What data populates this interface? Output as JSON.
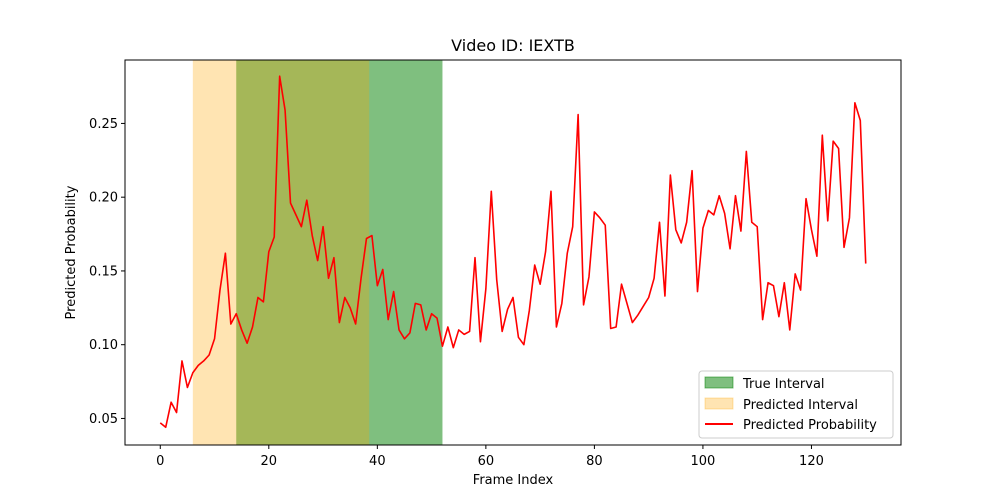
{
  "chart_data": {
    "type": "line",
    "title": "Video ID: IEXTB",
    "xlabel": "Frame Index",
    "ylabel": "Predicted Probability",
    "xlim": [
      -6.5,
      136.5
    ],
    "ylim": [
      0.032,
      0.293
    ],
    "xticks": [
      0,
      20,
      40,
      60,
      80,
      100,
      120
    ],
    "yticks": [
      0.05,
      0.1,
      0.15,
      0.2,
      0.25
    ],
    "ytick_labels": [
      "0.05",
      "0.10",
      "0.15",
      "0.20",
      "0.25"
    ],
    "grid": false,
    "legend_position": "bottom-right",
    "true_interval": {
      "name": "True Interval",
      "start": 14,
      "end": 52,
      "color": "#008000"
    },
    "predicted_interval": {
      "name": "Predicted Interval",
      "start": 6,
      "end": 38.5,
      "color": "#FFA500"
    },
    "series": [
      {
        "name": "Predicted Probability",
        "color": "#ff0000",
        "x": [
          0,
          1,
          2,
          3,
          4,
          5,
          6,
          7,
          8,
          9,
          10,
          11,
          12,
          13,
          14,
          15,
          16,
          17,
          18,
          19,
          20,
          21,
          22,
          23,
          24,
          25,
          26,
          27,
          28,
          29,
          30,
          31,
          32,
          33,
          34,
          35,
          36,
          37,
          38,
          39,
          40,
          41,
          42,
          43,
          44,
          45,
          46,
          47,
          48,
          49,
          50,
          51,
          52,
          53,
          54,
          55,
          56,
          57,
          58,
          59,
          60,
          61,
          62,
          63,
          64,
          65,
          66,
          67,
          68,
          69,
          70,
          71,
          72,
          73,
          74,
          75,
          76,
          77,
          78,
          79,
          80,
          81,
          82,
          83,
          84,
          85,
          86,
          87,
          88,
          89,
          90,
          91,
          92,
          93,
          94,
          95,
          96,
          97,
          98,
          99,
          100,
          101,
          102,
          103,
          104,
          105,
          106,
          107,
          108,
          109,
          110,
          111,
          112,
          113,
          114,
          115,
          116,
          117,
          118,
          119,
          120,
          121,
          122,
          123,
          124,
          125,
          126,
          127,
          128,
          129,
          130
        ],
        "values": [
          0.047,
          0.044,
          0.061,
          0.054,
          0.089,
          0.071,
          0.081,
          0.086,
          0.089,
          0.093,
          0.104,
          0.137,
          0.162,
          0.114,
          0.121,
          0.11,
          0.101,
          0.112,
          0.132,
          0.129,
          0.163,
          0.173,
          0.282,
          0.259,
          0.196,
          0.188,
          0.18,
          0.198,
          0.174,
          0.157,
          0.18,
          0.145,
          0.159,
          0.115,
          0.132,
          0.125,
          0.114,
          0.145,
          0.172,
          0.174,
          0.14,
          0.151,
          0.117,
          0.136,
          0.11,
          0.104,
          0.108,
          0.128,
          0.127,
          0.11,
          0.121,
          0.118,
          0.099,
          0.112,
          0.098,
          0.11,
          0.107,
          0.109,
          0.159,
          0.102,
          0.138,
          0.204,
          0.144,
          0.109,
          0.124,
          0.132,
          0.105,
          0.1,
          0.123,
          0.154,
          0.141,
          0.163,
          0.204,
          0.112,
          0.128,
          0.162,
          0.18,
          0.256,
          0.127,
          0.146,
          0.19,
          0.186,
          0.181,
          0.111,
          0.112,
          0.141,
          0.128,
          0.115,
          0.12,
          0.126,
          0.132,
          0.145,
          0.183,
          0.133,
          0.215,
          0.178,
          0.169,
          0.183,
          0.218,
          0.136,
          0.179,
          0.191,
          0.188,
          0.201,
          0.189,
          0.165,
          0.201,
          0.177,
          0.231,
          0.183,
          0.18,
          0.117,
          0.142,
          0.14,
          0.119,
          0.142,
          0.11,
          0.148,
          0.137,
          0.199,
          0.178,
          0.16,
          0.242,
          0.184,
          0.238,
          0.233,
          0.166,
          0.186,
          0.264,
          0.252,
          0.155
        ]
      }
    ]
  }
}
